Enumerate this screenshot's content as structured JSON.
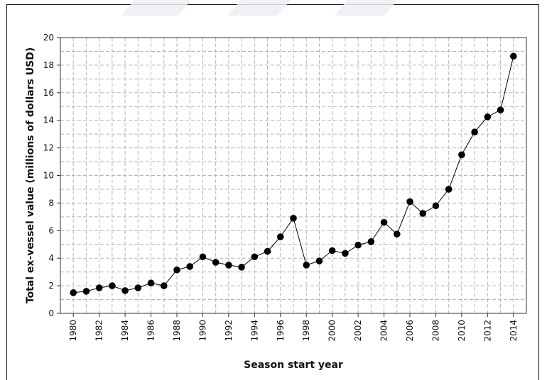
{
  "chart_data": {
    "type": "line",
    "title": "",
    "xlabel": "Season start year",
    "ylabel": "Total ex-vessel value (millions of dollars USD)",
    "xlim": [
      1979,
      2015
    ],
    "ylim": [
      0,
      20
    ],
    "x_ticks": [
      1980,
      1982,
      1984,
      1986,
      1988,
      1990,
      1992,
      1994,
      1996,
      1998,
      2000,
      2002,
      2004,
      2006,
      2008,
      2010,
      2012,
      2014
    ],
    "y_ticks": [
      0,
      2,
      4,
      6,
      8,
      10,
      12,
      14,
      16,
      18,
      20
    ],
    "grid": true,
    "marker": "filled-circle",
    "line_color": "#000000",
    "x": [
      1980,
      1981,
      1982,
      1983,
      1984,
      1985,
      1986,
      1987,
      1988,
      1989,
      1990,
      1991,
      1992,
      1993,
      1994,
      1995,
      1996,
      1997,
      1998,
      1999,
      2000,
      2001,
      2002,
      2003,
      2004,
      2005,
      2006,
      2007,
      2008,
      2009,
      2010,
      2011,
      2012,
      2013,
      2014
    ],
    "values": [
      1.5,
      1.6,
      1.85,
      2.0,
      1.65,
      1.85,
      2.2,
      2.0,
      3.15,
      3.4,
      4.1,
      3.7,
      3.5,
      3.35,
      4.1,
      4.5,
      5.55,
      6.9,
      3.5,
      3.8,
      4.55,
      4.35,
      4.95,
      5.2,
      6.6,
      5.75,
      8.1,
      7.25,
      7.8,
      9.0,
      11.5,
      13.15,
      14.25,
      14.75,
      18.65
    ]
  }
}
